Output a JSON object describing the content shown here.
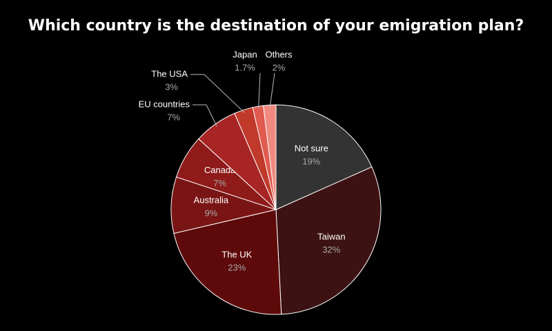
{
  "chart_data": {
    "type": "pie",
    "title": "Which country is the destination of your emigration plan?",
    "categories": [
      "Not sure",
      "Taiwan",
      "The UK",
      "Australia",
      "Canada",
      "EU countries",
      "The USA",
      "Japan",
      "Others"
    ],
    "values": [
      19,
      32,
      23,
      9,
      7,
      7,
      3,
      1.7,
      2
    ],
    "value_labels": [
      "19%",
      "32%",
      "23%",
      "9%",
      "7%",
      "7%",
      "3%",
      "1.7%",
      "2%"
    ],
    "colors": [
      "#333333",
      "#3d1212",
      "#5e0a0a",
      "#7a1515",
      "#8e1a1a",
      "#a82525",
      "#c0392b",
      "#e05a4e",
      "#f08a80"
    ]
  }
}
